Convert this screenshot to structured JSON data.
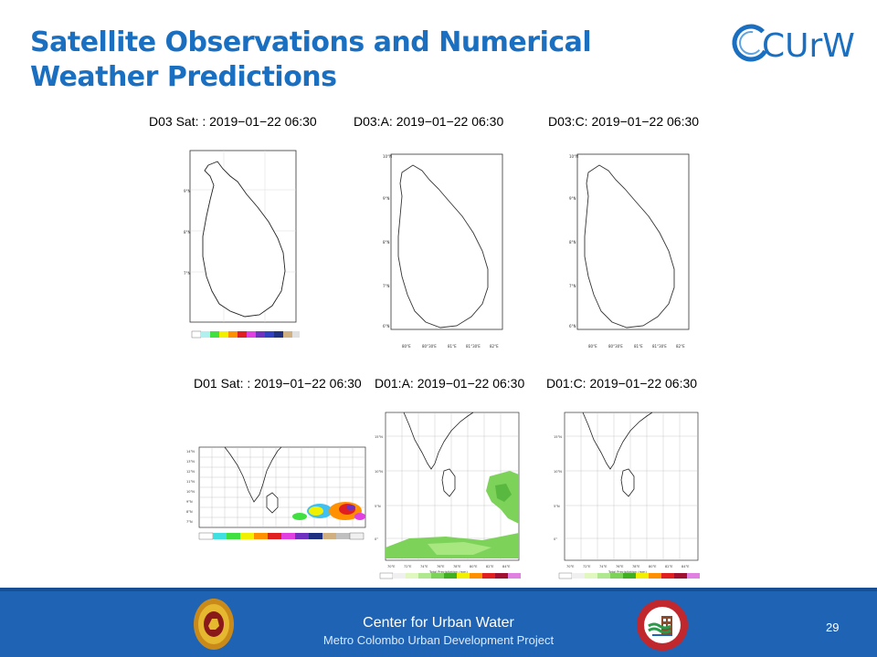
{
  "slide": {
    "title_line1": "Satellite Observations and Numerical",
    "title_line2": "Weather Predictions",
    "logo_text": "CUrW",
    "page_number": "29"
  },
  "panels": {
    "top": [
      {
        "caption": "D03 Sat: : 2019−01−22 06:30"
      },
      {
        "caption": "D03:A: 2019−01−22 06:30"
      },
      {
        "caption": "D03:C: 2019−01−22 06:30"
      }
    ],
    "bottom": [
      {
        "caption": "D01 Sat: : 2019−01−22 06:30"
      },
      {
        "caption": "D01:A: 2019−01−22 06:30"
      },
      {
        "caption": "D01:C: 2019−01−22 06:30"
      }
    ]
  },
  "footer": {
    "org": "Center for Urban Water",
    "project": "Metro Colombo Urban Development Project",
    "left_emblem": "sri-lanka-emblem-icon",
    "right_emblem": "mcudp-logo-icon"
  },
  "colors": {
    "title": "#1a6fc0",
    "footer_bg": "#1f63b5",
    "precip_green": "#7dd35a"
  }
}
